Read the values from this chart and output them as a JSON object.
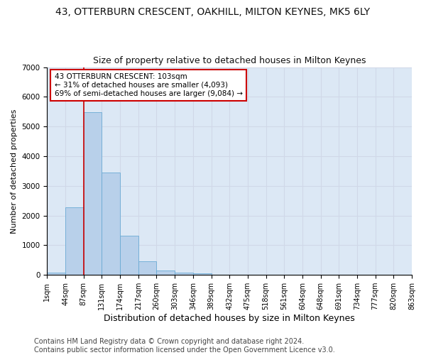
{
  "title": "43, OTTERBURN CRESCENT, OAKHILL, MILTON KEYNES, MK5 6LY",
  "subtitle": "Size of property relative to detached houses in Milton Keynes",
  "xlabel": "Distribution of detached houses by size in Milton Keynes",
  "ylabel": "Number of detached properties",
  "bin_labels": [
    "1sqm",
    "44sqm",
    "87sqm",
    "131sqm",
    "174sqm",
    "217sqm",
    "260sqm",
    "303sqm",
    "346sqm",
    "389sqm",
    "432sqm",
    "475sqm",
    "518sqm",
    "561sqm",
    "604sqm",
    "648sqm",
    "691sqm",
    "734sqm",
    "777sqm",
    "820sqm",
    "863sqm"
  ],
  "bar_heights": [
    80,
    2280,
    5480,
    3450,
    1310,
    470,
    155,
    85,
    50,
    0,
    0,
    0,
    0,
    0,
    0,
    0,
    0,
    0,
    0,
    0
  ],
  "bar_color": "#b8d0ea",
  "bar_edge_color": "#6aaad4",
  "highlight_line_color": "#cc0000",
  "highlight_line_bin": 2,
  "annotation_text": "43 OTTERBURN CRESCENT: 103sqm\n← 31% of detached houses are smaller (4,093)\n69% of semi-detached houses are larger (9,084) →",
  "annotation_box_color": "#ffffff",
  "annotation_box_edge_color": "#cc0000",
  "ylim": [
    0,
    7000
  ],
  "yticks": [
    0,
    1000,
    2000,
    3000,
    4000,
    5000,
    6000,
    7000
  ],
  "grid_color": "#d0d8e8",
  "background_color": "#dce8f5",
  "footer_text": "Contains HM Land Registry data © Crown copyright and database right 2024.\nContains public sector information licensed under the Open Government Licence v3.0.",
  "title_fontsize": 10,
  "subtitle_fontsize": 9,
  "xlabel_fontsize": 9,
  "ylabel_fontsize": 8,
  "tick_fontsize": 7,
  "annotation_fontsize": 7.5,
  "footer_fontsize": 7
}
